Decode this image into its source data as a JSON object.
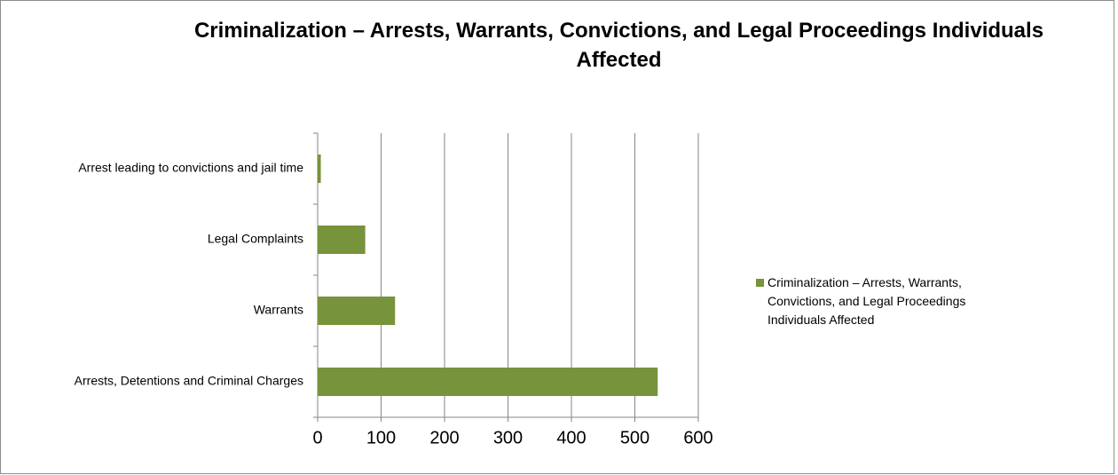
{
  "chart_data": {
    "type": "bar",
    "orientation": "horizontal",
    "title": "Criminalization – Arrests, Warrants, Convictions, and Legal Proceedings Individuals Affected",
    "categories": [
      "Arrests, Detentions and Criminal Charges",
      "Warrants",
      "Legal Complaints",
      "Arrest leading to convictions and jail time"
    ],
    "series": [
      {
        "name": "Criminalization – Arrests, Warrants, Convictions, and Legal Proceedings Individuals Affected",
        "color": "#77933c",
        "values": [
          536,
          122,
          75,
          5
        ]
      }
    ],
    "xlim": [
      0,
      600
    ],
    "xticks": [
      0,
      100,
      200,
      300,
      400,
      500,
      600
    ],
    "grid": true,
    "legend": "right"
  }
}
